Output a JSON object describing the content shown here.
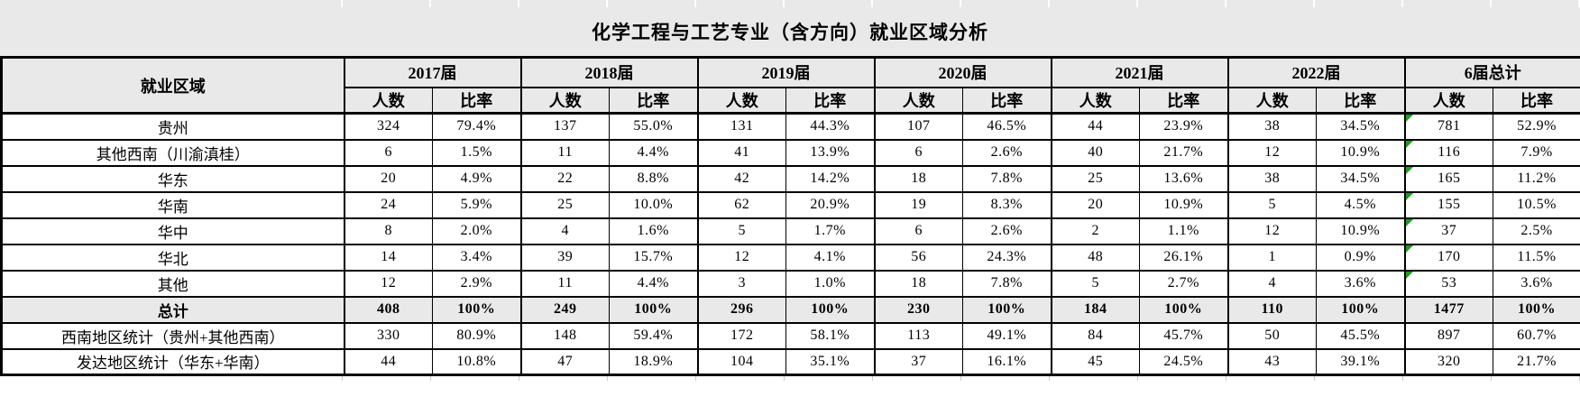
{
  "title": "化学工程与工艺专业（含方向）就业区域分析",
  "table": {
    "region_col_header": "就业区域",
    "year_groups": [
      "2017届",
      "2018届",
      "2019届",
      "2020届",
      "2021届",
      "2022届",
      "6届总计"
    ],
    "subcolumns": [
      "人数",
      "比率"
    ],
    "rows": [
      {
        "label": "贵州",
        "shaded": false,
        "triangle": true,
        "values": [
          "324",
          "79.4%",
          "137",
          "55.0%",
          "131",
          "44.3%",
          "107",
          "46.5%",
          "44",
          "23.9%",
          "38",
          "34.5%",
          "781",
          "52.9%"
        ]
      },
      {
        "label": "其他西南（川渝滇桂）",
        "shaded": false,
        "triangle": true,
        "values": [
          "6",
          "1.5%",
          "11",
          "4.4%",
          "41",
          "13.9%",
          "6",
          "2.6%",
          "40",
          "21.7%",
          "12",
          "10.9%",
          "116",
          "7.9%"
        ]
      },
      {
        "label": "华东",
        "shaded": false,
        "triangle": true,
        "values": [
          "20",
          "4.9%",
          "22",
          "8.8%",
          "42",
          "14.2%",
          "18",
          "7.8%",
          "25",
          "13.6%",
          "38",
          "34.5%",
          "165",
          "11.2%"
        ]
      },
      {
        "label": "华南",
        "shaded": false,
        "triangle": true,
        "values": [
          "24",
          "5.9%",
          "25",
          "10.0%",
          "62",
          "20.9%",
          "19",
          "8.3%",
          "20",
          "10.9%",
          "5",
          "4.5%",
          "155",
          "10.5%"
        ]
      },
      {
        "label": "华中",
        "shaded": false,
        "triangle": true,
        "values": [
          "8",
          "2.0%",
          "4",
          "1.6%",
          "5",
          "1.7%",
          "6",
          "2.6%",
          "2",
          "1.1%",
          "12",
          "10.9%",
          "37",
          "2.5%"
        ]
      },
      {
        "label": "华北",
        "shaded": false,
        "triangle": true,
        "values": [
          "14",
          "3.4%",
          "39",
          "15.7%",
          "12",
          "4.1%",
          "56",
          "24.3%",
          "48",
          "26.1%",
          "1",
          "0.9%",
          "170",
          "11.5%"
        ]
      },
      {
        "label": "其他",
        "shaded": false,
        "triangle": true,
        "values": [
          "12",
          "2.9%",
          "11",
          "4.4%",
          "3",
          "1.0%",
          "18",
          "7.8%",
          "5",
          "2.7%",
          "4",
          "3.6%",
          "53",
          "3.6%"
        ]
      },
      {
        "label": "总计",
        "shaded": true,
        "triangle": false,
        "values": [
          "408",
          "100%",
          "249",
          "100%",
          "296",
          "100%",
          "230",
          "100%",
          "184",
          "100%",
          "110",
          "100%",
          "1477",
          "100%"
        ]
      },
      {
        "label": "西南地区统计（贵州+其他西南）",
        "shaded": false,
        "triangle": false,
        "values": [
          "330",
          "80.9%",
          "148",
          "59.4%",
          "172",
          "58.1%",
          "113",
          "49.1%",
          "84",
          "45.7%",
          "50",
          "45.5%",
          "897",
          "60.7%"
        ]
      },
      {
        "label": "发达地区统计（华东+华南）",
        "shaded": false,
        "triangle": false,
        "values": [
          "44",
          "10.8%",
          "47",
          "18.9%",
          "104",
          "35.1%",
          "37",
          "16.1%",
          "45",
          "24.5%",
          "43",
          "39.1%",
          "320",
          "21.7%"
        ]
      }
    ]
  },
  "colors": {
    "header_bg": "#E9E9E9",
    "total_row_bg": "#E9E9E9",
    "grid_line": "#000000",
    "error_triangle": "#1E9E1E"
  }
}
